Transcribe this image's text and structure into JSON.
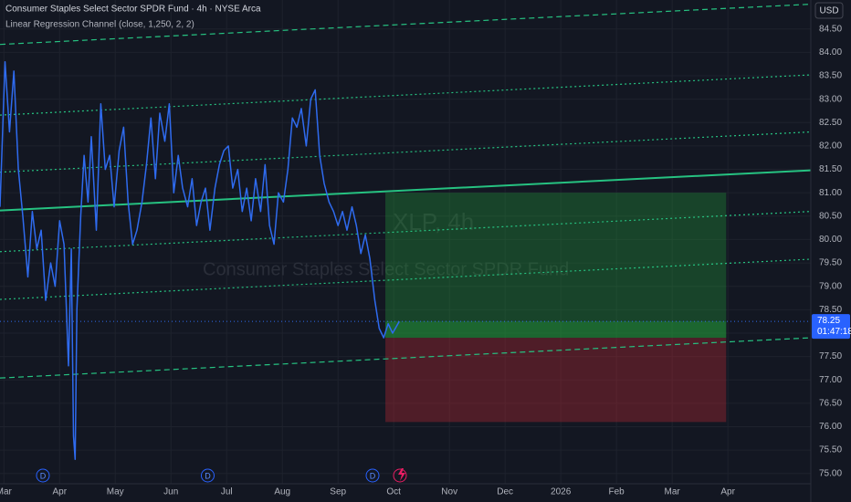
{
  "chart_data": {
    "type": "line",
    "title": "Consumer Staples Select Sector SPDR Fund · 4h · NYSE Arca",
    "indicator": "Linear Regression Channel (close, 1,250, 2, 2)",
    "watermark": [
      "XLP, 4h",
      "Consumer Staples Select Sector SPDR Fund"
    ],
    "currency": "USD",
    "xlim": [
      -0.07,
      14.49
    ],
    "ylim": [
      74.78,
      85.12
    ],
    "grid": true,
    "xticks": [
      {
        "value": 0,
        "label": "Mar"
      },
      {
        "value": 1,
        "label": "Apr"
      },
      {
        "value": 2,
        "label": "May"
      },
      {
        "value": 3,
        "label": "Jun"
      },
      {
        "value": 4,
        "label": "Jul"
      },
      {
        "value": 5,
        "label": "Aug"
      },
      {
        "value": 6,
        "label": "Sep"
      },
      {
        "value": 7,
        "label": "Oct"
      },
      {
        "value": 8,
        "label": "Nov"
      },
      {
        "value": 9,
        "label": "Dec"
      },
      {
        "value": 10,
        "label": "2026"
      },
      {
        "value": 11,
        "label": "Feb"
      },
      {
        "value": 12,
        "label": "Mar"
      },
      {
        "value": 13,
        "label": "Apr"
      }
    ],
    "yticks": [
      {
        "value": 84.5,
        "label": "84.50"
      },
      {
        "value": 84,
        "label": "84.00"
      },
      {
        "value": 83.5,
        "label": "83.50"
      },
      {
        "value": 83,
        "label": "83.00"
      },
      {
        "value": 82.5,
        "label": "82.50"
      },
      {
        "value": 82,
        "label": "82.00"
      },
      {
        "value": 81.5,
        "label": "81.50"
      },
      {
        "value": 81,
        "label": "81.00"
      },
      {
        "value": 80.5,
        "label": "80.50"
      },
      {
        "value": 80,
        "label": "80.00"
      },
      {
        "value": 79.5,
        "label": "79.50"
      },
      {
        "value": 79,
        "label": "79.00"
      },
      {
        "value": 78.5,
        "label": "78.50"
      },
      {
        "value": 78,
        "label": "78.00"
      },
      {
        "value": 77.5,
        "label": "77.50"
      },
      {
        "value": 77,
        "label": "77.00"
      },
      {
        "value": 76.5,
        "label": "76.50"
      },
      {
        "value": 76,
        "label": "76.00"
      },
      {
        "value": 75.5,
        "label": "75.50"
      },
      {
        "value": 75,
        "label": "75.00"
      }
    ],
    "series": [
      {
        "color": "#2f6bef",
        "x": [
          -0.07,
          0.02,
          0.1,
          0.18,
          0.26,
          0.34,
          0.43,
          0.51,
          0.59,
          0.67,
          0.75,
          0.84,
          0.92,
          1.0,
          1.08,
          1.16,
          1.21,
          1.25,
          1.28,
          1.31,
          1.38,
          1.44,
          1.51,
          1.57,
          1.66,
          1.74,
          1.82,
          1.9,
          1.98,
          2.07,
          2.15,
          2.23,
          2.31,
          2.39,
          2.48,
          2.56,
          2.64,
          2.72,
          2.8,
          2.89,
          2.97,
          3.05,
          3.13,
          3.21,
          3.3,
          3.38,
          3.46,
          3.54,
          3.62,
          3.7,
          3.79,
          3.87,
          3.95,
          4.03,
          4.11,
          4.2,
          4.28,
          4.36,
          4.44,
          4.52,
          4.61,
          4.69,
          4.77,
          4.85,
          4.93,
          5.02,
          5.1,
          5.18,
          5.26,
          5.34,
          5.43,
          5.51,
          5.59,
          5.67,
          5.75,
          5.84,
          5.92,
          6.0,
          6.08,
          6.16,
          6.25,
          6.33,
          6.41,
          6.49,
          6.57,
          6.66,
          6.74,
          6.82,
          6.9,
          6.98,
          7.1
        ],
        "values": [
          80.7,
          83.8,
          82.3,
          83.6,
          81.5,
          80.5,
          79.2,
          80.6,
          79.8,
          80.2,
          78.7,
          79.5,
          79.0,
          80.4,
          79.9,
          77.3,
          79.8,
          75.8,
          75.3,
          78.5,
          80.5,
          81.8,
          80.8,
          82.2,
          80.2,
          82.9,
          81.5,
          81.8,
          80.7,
          81.9,
          82.4,
          80.8,
          79.9,
          80.2,
          80.8,
          81.6,
          82.6,
          81.3,
          82.7,
          82.1,
          82.9,
          81.0,
          81.8,
          81.1,
          80.7,
          81.3,
          80.3,
          80.8,
          81.1,
          80.2,
          81.1,
          81.6,
          81.9,
          82.0,
          81.1,
          81.5,
          80.6,
          81.1,
          80.4,
          81.3,
          80.6,
          81.6,
          80.3,
          79.9,
          81.0,
          80.8,
          81.5,
          82.6,
          82.4,
          82.8,
          82.0,
          83.0,
          83.2,
          81.8,
          81.2,
          80.8,
          80.6,
          80.3,
          80.6,
          80.2,
          80.7,
          80.3,
          79.7,
          80.1,
          79.6,
          78.7,
          78.1,
          77.9,
          78.2,
          78.0,
          78.25
        ]
      }
    ],
    "channel_color": "#26c281",
    "channel": [
      {
        "style": "dashed",
        "values": [
          84.17,
          85.03
        ]
      },
      {
        "style": "dotted",
        "values": [
          82.66,
          83.52
        ]
      },
      {
        "style": "dotted",
        "values": [
          81.44,
          82.3
        ]
      },
      {
        "style": "solid",
        "values": [
          80.62,
          81.48
        ]
      },
      {
        "style": "dotted",
        "values": [
          79.74,
          80.6
        ]
      },
      {
        "style": "dotted",
        "values": [
          78.72,
          79.58
        ]
      },
      {
        "style": "dashed",
        "values": [
          77.04,
          77.9
        ]
      }
    ],
    "position": {
      "x": [
        6.85,
        12.97
      ],
      "target": 81.0,
      "entry": 77.9,
      "stop": 76.1
    },
    "last_price": 78.25,
    "countdown": "01:47:18",
    "events": [
      {
        "x": 0.7,
        "label": "D"
      },
      {
        "x": 3.66,
        "label": "D"
      },
      {
        "x": 6.62,
        "label": "D"
      }
    ]
  }
}
